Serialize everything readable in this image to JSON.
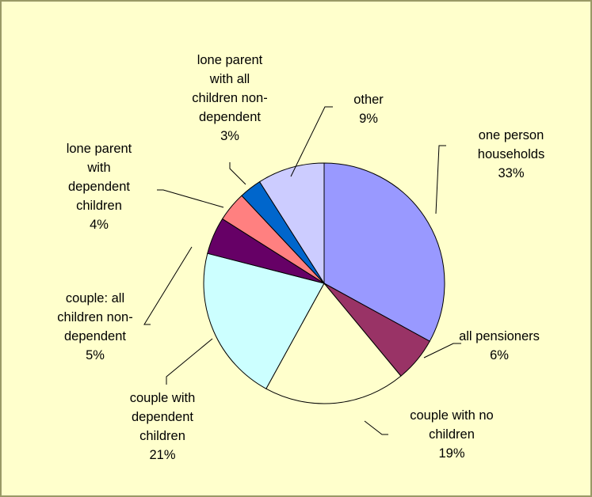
{
  "chart_data": {
    "type": "pie",
    "title": "",
    "start_angle_deg": 0,
    "direction": "clockwise",
    "slices": [
      {
        "label": [
          "one person",
          "households"
        ],
        "value": 33,
        "percent_label": "33%",
        "color": "#9999ff"
      },
      {
        "label": [
          "all pensioners"
        ],
        "value": 6,
        "percent_label": "6%",
        "color": "#993366"
      },
      {
        "label": [
          "couple with no",
          "children"
        ],
        "value": 19,
        "percent_label": "19%",
        "color": "#ffffcc"
      },
      {
        "label": [
          "couple with",
          "dependent",
          "children"
        ],
        "value": 21,
        "percent_label": "21%",
        "color": "#ccffff"
      },
      {
        "label": [
          "couple: all",
          "children non-",
          "dependent"
        ],
        "value": 5,
        "percent_label": "5%",
        "color": "#660066"
      },
      {
        "label": [
          "lone parent",
          "with",
          "dependent",
          "children"
        ],
        "value": 4,
        "percent_label": "4%",
        "color": "#ff8080"
      },
      {
        "label": [
          "lone parent",
          "with all",
          "children non-",
          "dependent"
        ],
        "value": 3,
        "percent_label": "3%",
        "color": "#0066cc"
      },
      {
        "label": [
          "other"
        ],
        "value": 9,
        "percent_label": "9%",
        "color": "#ccccff"
      }
    ],
    "legend": "none",
    "labels": "outside-with-leader-lines"
  }
}
